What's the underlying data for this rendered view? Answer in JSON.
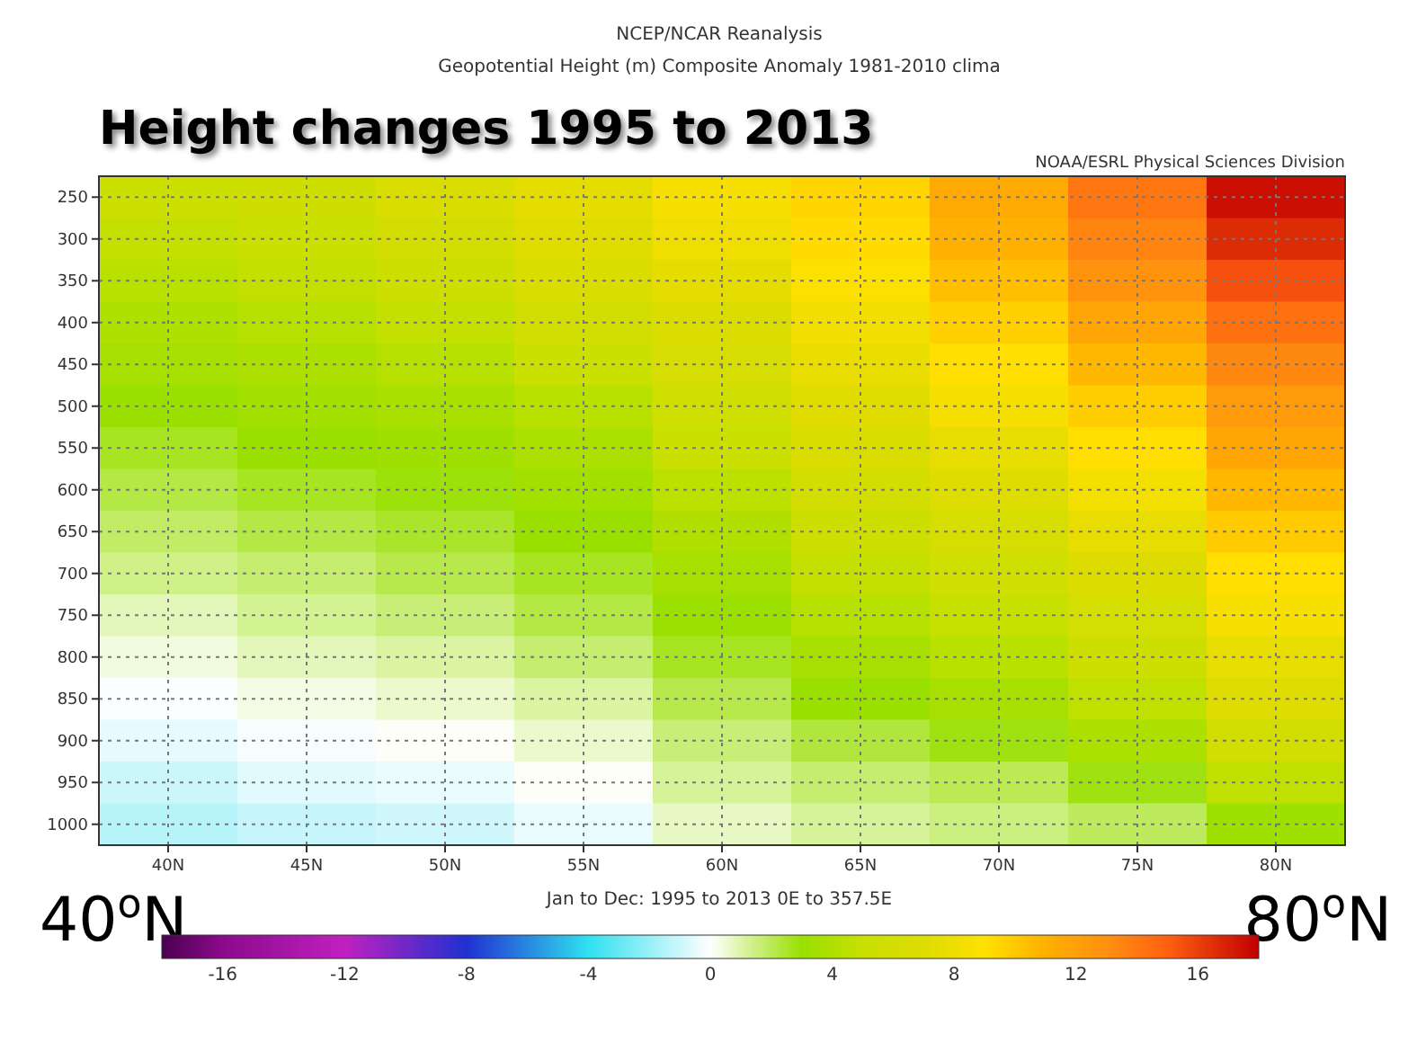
{
  "chart_data": {
    "type": "heatmap",
    "title": "NCEP/NCAR Reanalysis",
    "subtitle": "Geopotential Height (m) Composite Anomaly 1981-2010 clima",
    "xlabel": "Jan to Dec: 1995 to 2013 0E to 357.5E",
    "annotations": [
      "NOAA/ESRL Physical Sciences Division",
      "Height changes 1995 to 2013",
      "40$^{o}$N",
      "80$^{o}$N"
    ],
    "categories": [
      "40N",
      "45N",
      "50N",
      "55N",
      "60N",
      "65N",
      "70N",
      "75N",
      "80N"
    ],
    "y_categories": [
      "250",
      "300",
      "350",
      "400",
      "450",
      "500",
      "550",
      "600",
      "650",
      "700",
      "750",
      "800",
      "850",
      "900",
      "950",
      "1000"
    ],
    "cells": [
      [
        5.3,
        5.5,
        6.5,
        7.5,
        8.5,
        9.5,
        11.4,
        14.1,
        17.5
      ],
      [
        4.8,
        5.1,
        6.0,
        7.2,
        8.0,
        9.2,
        11.0,
        13.5,
        16.6
      ],
      [
        4.4,
        4.7,
        5.4,
        6.5,
        7.4,
        8.8,
        10.4,
        12.8,
        15.5
      ],
      [
        3.9,
        4.2,
        4.8,
        5.8,
        6.7,
        8.2,
        9.7,
        11.7,
        14.3
      ],
      [
        3.5,
        3.8,
        4.2,
        5.1,
        6.2,
        7.7,
        9.1,
        10.7,
        13.3
      ],
      [
        3.0,
        3.4,
        3.7,
        4.4,
        5.6,
        7.2,
        8.4,
        9.8,
        12.4
      ],
      [
        2.6,
        3.0,
        3.3,
        3.8,
        5.1,
        6.6,
        7.6,
        9.1,
        11.6
      ],
      [
        2.2,
        2.6,
        2.9,
        3.4,
        4.5,
        6.0,
        7.0,
        8.3,
        10.7
      ],
      [
        1.8,
        2.2,
        2.5,
        3.0,
        4.0,
        5.4,
        6.3,
        7.6,
        9.9
      ],
      [
        1.4,
        1.7,
        2.1,
        2.6,
        3.5,
        4.8,
        5.6,
        6.9,
        9.1
      ],
      [
        0.8,
        1.3,
        1.6,
        2.2,
        3.1,
        4.2,
        5.0,
        6.1,
        8.5
      ],
      [
        0.4,
        0.8,
        1.1,
        1.7,
        2.6,
        3.6,
        4.4,
        5.4,
        7.6
      ],
      [
        -0.1,
        0.3,
        0.6,
        1.1,
        2.1,
        3.0,
        3.6,
        4.6,
        7.0
      ],
      [
        -0.5,
        -0.2,
        0.1,
        0.6,
        1.6,
        2.3,
        2.8,
        3.8,
        5.9
      ],
      [
        -1.0,
        -0.6,
        -0.4,
        0.1,
        1.2,
        1.7,
        2.0,
        2.8,
        4.6
      ],
      [
        -1.4,
        -1.1,
        -0.9,
        -0.4,
        0.7,
        1.2,
        1.5,
        1.9,
        3.2
      ]
    ],
    "clim": [
      -18,
      18
    ],
    "cticks": [
      -16,
      -12,
      -8,
      -4,
      0,
      4,
      8,
      12,
      16
    ],
    "grid": true
  }
}
